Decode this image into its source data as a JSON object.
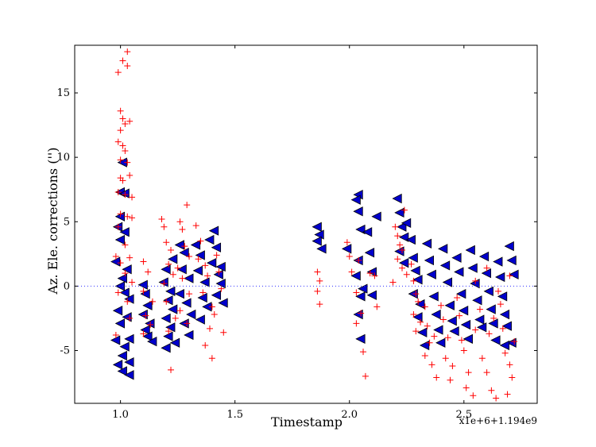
{
  "chart_data": {
    "type": "scatter",
    "xlabel": "Timestamp",
    "ylabel": "Az. Ele. corrections ('')",
    "x_offset_label": "x1e+6+1.194e9",
    "xlim": [
      0.8,
      2.82
    ],
    "ylim": [
      -9.1,
      18.7
    ],
    "xticks": [
      {
        "v": 1.0,
        "label": "1.0"
      },
      {
        "v": 1.5,
        "label": "1.5"
      },
      {
        "v": 2.0,
        "label": "2.0"
      },
      {
        "v": 2.5,
        "label": "2.5"
      }
    ],
    "yticks": [
      {
        "v": -5,
        "label": "-5"
      },
      {
        "v": 0,
        "label": "0"
      },
      {
        "v": 5,
        "label": "5"
      },
      {
        "v": 10,
        "label": "10"
      },
      {
        "v": 15,
        "label": "15"
      }
    ],
    "reference_line_y": 0,
    "series": [
      {
        "marker": "plus",
        "color": "#ff0000",
        "points": [
          [
            0.99,
            16.6
          ],
          [
            1.01,
            17.5
          ],
          [
            1.03,
            18.2
          ],
          [
            1.03,
            17.1
          ],
          [
            1.0,
            13.6
          ],
          [
            1.01,
            13.0
          ],
          [
            1.0,
            12.1
          ],
          [
            1.02,
            12.6
          ],
          [
            1.04,
            12.8
          ],
          [
            0.99,
            11.2
          ],
          [
            1.01,
            10.9
          ],
          [
            1.02,
            10.5
          ],
          [
            1.0,
            9.8
          ],
          [
            1.03,
            9.6
          ],
          [
            1.0,
            8.4
          ],
          [
            1.01,
            8.2
          ],
          [
            1.04,
            8.6
          ],
          [
            0.99,
            7.3
          ],
          [
            1.02,
            7.1
          ],
          [
            1.05,
            6.9
          ],
          [
            1.0,
            5.6
          ],
          [
            1.03,
            5.4
          ],
          [
            1.05,
            5.3
          ],
          [
            0.99,
            4.6
          ],
          [
            1.02,
            3.2
          ],
          [
            0.98,
            2.3
          ],
          [
            1.04,
            2.2
          ],
          [
            1.0,
            1.8
          ],
          [
            1.02,
            1.0
          ],
          [
            1.05,
            0.3
          ],
          [
            0.99,
            -0.5
          ],
          [
            1.03,
            -1.2
          ],
          [
            1.04,
            -2.5
          ],
          [
            0.98,
            -3.8
          ],
          [
            1.1,
            1.9
          ],
          [
            1.12,
            1.1
          ],
          [
            1.1,
            -0.4
          ],
          [
            1.14,
            -1.2
          ],
          [
            1.11,
            -2.3
          ],
          [
            1.13,
            -3.0
          ],
          [
            1.1,
            -3.7
          ],
          [
            1.18,
            5.2
          ],
          [
            1.19,
            4.6
          ],
          [
            1.2,
            3.4
          ],
          [
            1.22,
            2.8
          ],
          [
            1.21,
            1.7
          ],
          [
            1.23,
            0.9
          ],
          [
            1.19,
            0.2
          ],
          [
            1.2,
            -1.2
          ],
          [
            1.24,
            -2.5
          ],
          [
            1.21,
            -3.5
          ],
          [
            1.22,
            -6.5
          ],
          [
            1.26,
            5.0
          ],
          [
            1.27,
            4.4
          ],
          [
            1.29,
            6.3
          ],
          [
            1.28,
            3.1
          ],
          [
            1.3,
            2.3
          ],
          [
            1.25,
            1.4
          ],
          [
            1.27,
            0.6
          ],
          [
            1.3,
            -0.6
          ],
          [
            1.26,
            -1.9
          ],
          [
            1.29,
            -2.9
          ],
          [
            1.33,
            4.7
          ],
          [
            1.35,
            3.5
          ],
          [
            1.34,
            2.1
          ],
          [
            1.37,
            1.6
          ],
          [
            1.38,
            0.8
          ],
          [
            1.36,
            -0.5
          ],
          [
            1.4,
            -1.6
          ],
          [
            1.39,
            -3.3
          ],
          [
            1.37,
            -4.6
          ],
          [
            1.4,
            -5.6
          ],
          [
            1.42,
            2.4
          ],
          [
            1.43,
            1.1
          ],
          [
            1.44,
            -0.2
          ],
          [
            1.41,
            -2.2
          ],
          [
            1.45,
            -3.6
          ],
          [
            1.86,
            1.1
          ],
          [
            1.87,
            0.4
          ],
          [
            1.86,
            -0.4
          ],
          [
            1.87,
            -1.4
          ],
          [
            1.99,
            3.4
          ],
          [
            2.0,
            2.3
          ],
          [
            2.01,
            1.1
          ],
          [
            2.04,
            2.0
          ],
          [
            2.03,
            -0.5
          ],
          [
            2.05,
            -2.1
          ],
          [
            2.03,
            -2.9
          ],
          [
            2.06,
            -5.1
          ],
          [
            2.07,
            -7.0
          ],
          [
            2.09,
            1.0
          ],
          [
            2.11,
            0.8
          ],
          [
            2.12,
            -1.6
          ],
          [
            2.2,
            4.6
          ],
          [
            2.21,
            3.9
          ],
          [
            2.22,
            3.2
          ],
          [
            2.23,
            2.8
          ],
          [
            2.21,
            2.1
          ],
          [
            2.23,
            1.4
          ],
          [
            2.24,
            5.9
          ],
          [
            2.25,
            0.9
          ],
          [
            2.19,
            0.3
          ],
          [
            2.27,
            1.7
          ],
          [
            2.28,
            0.4
          ],
          [
            2.29,
            -0.6
          ],
          [
            2.3,
            -1.2
          ],
          [
            2.28,
            -2.2
          ],
          [
            2.31,
            -2.8
          ],
          [
            2.29,
            -3.5
          ],
          [
            2.33,
            -1.6
          ],
          [
            2.34,
            -3.1
          ],
          [
            2.35,
            -4.4
          ],
          [
            2.33,
            -5.4
          ],
          [
            2.36,
            -6.1
          ],
          [
            2.38,
            -7.1
          ],
          [
            2.37,
            -3.9
          ],
          [
            2.4,
            -1.5
          ],
          [
            2.41,
            -2.6
          ],
          [
            2.43,
            -4.0
          ],
          [
            2.42,
            -5.6
          ],
          [
            2.45,
            -6.2
          ],
          [
            2.44,
            -7.3
          ],
          [
            2.47,
            -0.9
          ],
          [
            2.48,
            -2.3
          ],
          [
            2.49,
            -4.2
          ],
          [
            2.5,
            -5.0
          ],
          [
            2.52,
            -6.7
          ],
          [
            2.51,
            -7.9
          ],
          [
            2.54,
            -8.5
          ],
          [
            2.55,
            -3.4
          ],
          [
            2.57,
            -1.8
          ],
          [
            2.58,
            -5.6
          ],
          [
            2.6,
            -6.7
          ],
          [
            2.61,
            -3.7
          ],
          [
            2.63,
            -2.5
          ],
          [
            2.62,
            -8.1
          ],
          [
            2.64,
            -8.7
          ],
          [
            2.66,
            -1.4
          ],
          [
            2.67,
            -3.3
          ],
          [
            2.68,
            -5.2
          ],
          [
            2.7,
            -6.1
          ],
          [
            2.71,
            -7.1
          ],
          [
            2.69,
            -8.4
          ],
          [
            2.72,
            -4.3
          ],
          [
            2.55,
            0.4
          ],
          [
            2.6,
            1.4
          ],
          [
            2.65,
            -0.4
          ],
          [
            2.7,
            0.8
          ]
        ]
      },
      {
        "marker": "triangle-left",
        "color": "#0000cc",
        "points": [
          [
            1.01,
            9.6
          ],
          [
            1.0,
            7.3
          ],
          [
            1.02,
            7.2
          ],
          [
            1.0,
            5.4
          ],
          [
            0.99,
            4.6
          ],
          [
            1.02,
            4.2
          ],
          [
            1.0,
            3.6
          ],
          [
            0.98,
            1.9
          ],
          [
            1.03,
            1.3
          ],
          [
            1.01,
            0.6
          ],
          [
            1.0,
            0.0
          ],
          [
            1.02,
            -0.5
          ],
          [
            1.04,
            -1.0
          ],
          [
            0.99,
            -1.9
          ],
          [
            1.03,
            -2.4
          ],
          [
            1.0,
            -2.9
          ],
          [
            0.98,
            -4.2
          ],
          [
            1.04,
            -4.1
          ],
          [
            1.02,
            -4.7
          ],
          [
            1.01,
            -5.4
          ],
          [
            1.04,
            -5.9
          ],
          [
            0.99,
            -6.1
          ],
          [
            1.01,
            -6.6
          ],
          [
            1.04,
            -6.9
          ],
          [
            1.1,
            0.1
          ],
          [
            1.11,
            -0.6
          ],
          [
            1.12,
            -1.5
          ],
          [
            1.1,
            -2.2
          ],
          [
            1.13,
            -2.9
          ],
          [
            1.11,
            -3.4
          ],
          [
            1.12,
            -3.9
          ],
          [
            1.14,
            -4.3
          ],
          [
            1.2,
            1.3
          ],
          [
            1.19,
            0.3
          ],
          [
            1.22,
            -0.4
          ],
          [
            1.21,
            -1.1
          ],
          [
            1.23,
            -1.8
          ],
          [
            1.2,
            -2.5
          ],
          [
            1.22,
            -3.2
          ],
          [
            1.21,
            -3.9
          ],
          [
            1.24,
            -4.4
          ],
          [
            1.2,
            -4.8
          ],
          [
            1.23,
            2.1
          ],
          [
            1.26,
            3.2
          ],
          [
            1.28,
            2.6
          ],
          [
            1.27,
            1.3
          ],
          [
            1.3,
            0.6
          ],
          [
            1.26,
            -0.6
          ],
          [
            1.29,
            -1.3
          ],
          [
            1.31,
            -2.2
          ],
          [
            1.28,
            -2.9
          ],
          [
            1.3,
            -3.8
          ],
          [
            1.33,
            3.2
          ],
          [
            1.35,
            2.4
          ],
          [
            1.34,
            1.2
          ],
          [
            1.37,
            0.3
          ],
          [
            1.36,
            -0.9
          ],
          [
            1.38,
            -1.6
          ],
          [
            1.35,
            -2.6
          ],
          [
            1.39,
            3.6
          ],
          [
            1.41,
            4.3
          ],
          [
            1.42,
            3.0
          ],
          [
            1.4,
            1.8
          ],
          [
            1.43,
            0.9
          ],
          [
            1.44,
            0.2
          ],
          [
            1.42,
            -0.7
          ],
          [
            1.45,
            -1.3
          ],
          [
            1.44,
            1.5
          ],
          [
            1.86,
            4.6
          ],
          [
            1.87,
            4.0
          ],
          [
            1.86,
            3.5
          ],
          [
            1.88,
            2.9
          ],
          [
            1.99,
            2.9
          ],
          [
            2.04,
            7.1
          ],
          [
            2.03,
            6.7
          ],
          [
            2.04,
            5.8
          ],
          [
            2.05,
            4.4
          ],
          [
            2.04,
            2.0
          ],
          [
            2.03,
            0.8
          ],
          [
            2.06,
            -0.2
          ],
          [
            2.05,
            -0.8
          ],
          [
            2.04,
            -2.2
          ],
          [
            2.05,
            -4.1
          ],
          [
            2.08,
            4.2
          ],
          [
            2.09,
            2.6
          ],
          [
            2.1,
            1.1
          ],
          [
            2.12,
            5.4
          ],
          [
            2.1,
            -0.7
          ],
          [
            2.21,
            6.8
          ],
          [
            2.22,
            5.7
          ],
          [
            2.23,
            4.6
          ],
          [
            2.24,
            3.8
          ],
          [
            2.22,
            2.7
          ],
          [
            2.25,
            4.9
          ],
          [
            2.24,
            1.8
          ],
          [
            2.27,
            3.6
          ],
          [
            2.28,
            2.2
          ],
          [
            2.29,
            1.2
          ],
          [
            2.3,
            0.5
          ],
          [
            2.28,
            -0.6
          ],
          [
            2.31,
            -1.4
          ],
          [
            2.3,
            -2.4
          ],
          [
            2.32,
            -3.6
          ],
          [
            2.33,
            -4.6
          ],
          [
            2.34,
            3.3
          ],
          [
            2.35,
            2.0
          ],
          [
            2.36,
            0.9
          ],
          [
            2.37,
            -0.8
          ],
          [
            2.38,
            -2.2
          ],
          [
            2.39,
            -3.4
          ],
          [
            2.4,
            -4.4
          ],
          [
            2.41,
            2.9
          ],
          [
            2.42,
            1.6
          ],
          [
            2.43,
            0.3
          ],
          [
            2.44,
            -1.5
          ],
          [
            2.45,
            -2.7
          ],
          [
            2.46,
            -3.5
          ],
          [
            2.47,
            2.2
          ],
          [
            2.48,
            1.1
          ],
          [
            2.49,
            -0.6
          ],
          [
            2.5,
            -1.9
          ],
          [
            2.51,
            -3.0
          ],
          [
            2.52,
            -4.1
          ],
          [
            2.53,
            2.8
          ],
          [
            2.54,
            1.4
          ],
          [
            2.55,
            0.2
          ],
          [
            2.56,
            -1.1
          ],
          [
            2.57,
            -2.6
          ],
          [
            2.58,
            -3.2
          ],
          [
            2.59,
            2.3
          ],
          [
            2.6,
            1.0
          ],
          [
            2.61,
            -0.4
          ],
          [
            2.62,
            -1.8
          ],
          [
            2.63,
            -2.9
          ],
          [
            2.64,
            -4.2
          ],
          [
            2.65,
            1.9
          ],
          [
            2.66,
            0.7
          ],
          [
            2.67,
            -0.8
          ],
          [
            2.68,
            -2.2
          ],
          [
            2.69,
            -3.1
          ],
          [
            2.7,
            3.1
          ],
          [
            2.71,
            2.0
          ],
          [
            2.72,
            0.9
          ],
          [
            2.71,
            -4.4
          ],
          [
            2.68,
            -4.6
          ]
        ]
      }
    ]
  }
}
